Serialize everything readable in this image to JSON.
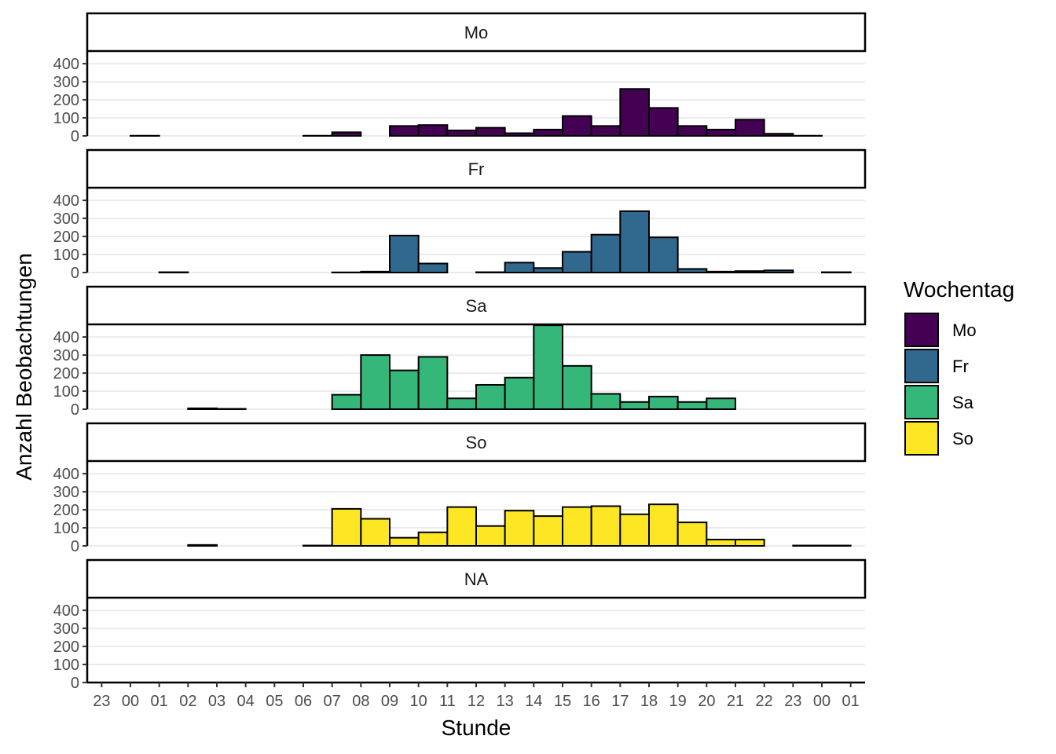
{
  "chart_data": {
    "type": "bar",
    "subtype": "faceted-histogram",
    "xlabel": "Stunde",
    "ylabel": "Anzahl Beobachtungen",
    "x_tick_labels": [
      "23",
      "00",
      "01",
      "02",
      "03",
      "04",
      "05",
      "06",
      "07",
      "08",
      "09",
      "10",
      "11",
      "12",
      "13",
      "14",
      "15",
      "16",
      "17",
      "18",
      "19",
      "20",
      "21",
      "22",
      "23",
      "00",
      "01"
    ],
    "xlim": [
      -0.5,
      26.5
    ],
    "y_ticks": [
      0,
      100,
      200,
      300,
      400
    ],
    "ylim": [
      0,
      470
    ],
    "grid": "horizontal major",
    "legend": {
      "title": "Wochentag",
      "placement": "right",
      "entries": [
        {
          "label": "Mo",
          "color": "#440154"
        },
        {
          "label": "Fr",
          "color": "#31688e"
        },
        {
          "label": "Sa",
          "color": "#35b779"
        },
        {
          "label": "So",
          "color": "#fde725"
        }
      ]
    },
    "facets": [
      {
        "label": "Mo",
        "color": "#440154",
        "values": [
          0,
          1,
          0,
          0,
          0,
          0,
          0,
          1,
          20,
          0,
          55,
          60,
          30,
          45,
          15,
          35,
          110,
          55,
          260,
          155,
          55,
          35,
          90,
          12,
          1,
          0
        ]
      },
      {
        "label": "Fr",
        "color": "#31688e",
        "values": [
          0,
          0,
          2,
          0,
          0,
          0,
          0,
          0,
          1,
          5,
          205,
          50,
          0,
          2,
          55,
          25,
          115,
          210,
          340,
          195,
          20,
          5,
          8,
          12,
          0,
          2
        ]
      },
      {
        "label": "Sa",
        "color": "#35b779",
        "values": [
          0,
          0,
          0,
          5,
          2,
          0,
          0,
          0,
          80,
          300,
          215,
          290,
          60,
          135,
          175,
          465,
          240,
          85,
          40,
          70,
          40,
          60,
          0,
          0,
          0,
          0
        ]
      },
      {
        "label": "So",
        "color": "#fde725",
        "values": [
          0,
          0,
          0,
          5,
          0,
          0,
          0,
          2,
          205,
          150,
          45,
          75,
          215,
          110,
          195,
          165,
          215,
          220,
          175,
          230,
          130,
          35,
          35,
          0,
          2,
          2
        ]
      },
      {
        "label": "NA",
        "color": "#bebebe",
        "values": []
      }
    ]
  }
}
